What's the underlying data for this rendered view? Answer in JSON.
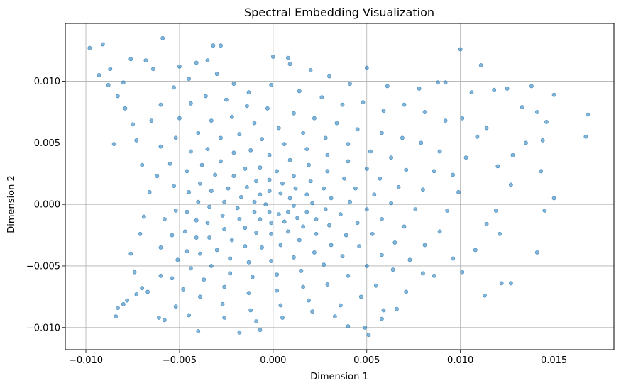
{
  "chart_data": {
    "type": "scatter",
    "title": "Spectral Embedding Visualization",
    "xlabel": "Dimension 1",
    "ylabel": "Dimension 2",
    "xlim": [
      -0.0111,
      0.0182
    ],
    "ylim": [
      -0.0118,
      0.0147
    ],
    "xticks": [
      -0.01,
      -0.005,
      0.0,
      0.005,
      0.01,
      0.015
    ],
    "xtick_labels": [
      "−0.010",
      "−0.005",
      "0.000",
      "0.005",
      "0.010",
      "0.015"
    ],
    "yticks": [
      -0.01,
      -0.005,
      0.0,
      0.005,
      0.01
    ],
    "ytick_labels": [
      "−0.010",
      "−0.005",
      "0.000",
      "0.005",
      "0.010"
    ],
    "grid": true,
    "marker_color": "#1f77b4",
    "marker_alpha": 0.55,
    "series": [
      {
        "points": [
          [
            -0.0098,
            0.0127
          ],
          [
            -0.0091,
            0.013
          ],
          [
            -0.0059,
            0.0135
          ],
          [
            -0.0032,
            0.0129
          ],
          [
            -0.0028,
            0.0129
          ],
          [
            0.0,
            0.012
          ],
          [
            0.0008,
            0.0119
          ],
          [
            0.005,
            0.0111
          ],
          [
            0.01,
            0.0126
          ],
          [
            0.0111,
            0.0113
          ],
          [
            0.0138,
            0.0096
          ],
          [
            0.015,
            0.0089
          ],
          [
            0.0168,
            0.0073
          ],
          [
            0.0167,
            0.0055
          ],
          [
            0.0146,
            0.0067
          ],
          [
            0.0143,
            0.0027
          ],
          [
            0.015,
            0.0005
          ],
          [
            0.0145,
            -0.0005
          ],
          [
            0.0141,
            -0.0039
          ],
          [
            0.0127,
            -0.0064
          ],
          [
            0.0122,
            -0.0064
          ],
          [
            0.0113,
            -0.0074
          ],
          [
            0.0101,
            -0.0055
          ],
          [
            0.008,
            -0.0056
          ],
          [
            0.0059,
            -0.0086
          ],
          [
            0.0051,
            -0.0106
          ],
          [
            0.0049,
            -0.01
          ],
          [
            0.004,
            -0.0099
          ],
          [
            -0.0007,
            -0.0102
          ],
          [
            -0.0018,
            -0.0104
          ],
          [
            -0.004,
            -0.0103
          ],
          [
            -0.0058,
            -0.0094
          ],
          [
            -0.0061,
            -0.0092
          ],
          [
            -0.0084,
            -0.0091
          ],
          [
            -0.0083,
            -0.0084
          ],
          [
            -0.008,
            -0.0081
          ],
          [
            -0.0078,
            -0.0078
          ],
          [
            -0.0073,
            -0.0073
          ],
          [
            -0.007,
            -0.0068
          ],
          [
            -0.0074,
            -0.0055
          ],
          [
            -0.0076,
            -0.004
          ],
          [
            -0.0071,
            -0.0024
          ],
          [
            -0.0069,
            -0.001
          ],
          [
            -0.0066,
            0.001
          ],
          [
            -0.007,
            0.0032
          ],
          [
            -0.0073,
            0.0052
          ],
          [
            -0.0075,
            0.0065
          ],
          [
            -0.0079,
            0.0078
          ],
          [
            -0.0083,
            0.0088
          ],
          [
            -0.0085,
            0.0049
          ],
          [
            -0.0088,
            0.0097
          ],
          [
            -0.0093,
            0.0105
          ],
          [
            -0.0087,
            0.011
          ],
          [
            -0.008,
            0.0099
          ],
          [
            -0.0076,
            0.0118
          ],
          [
            -0.0068,
            0.0117
          ],
          [
            -0.0064,
            0.011
          ],
          [
            -0.005,
            0.0112
          ],
          [
            -0.0041,
            0.0115
          ],
          [
            -0.0035,
            0.0117
          ],
          [
            0.0009,
            0.0114
          ],
          [
            0.002,
            0.0109
          ],
          [
            0.003,
            0.0104
          ],
          [
            0.0041,
            0.0098
          ],
          [
            0.0061,
            0.0096
          ],
          [
            0.0078,
            0.0094
          ],
          [
            0.0088,
            0.0099
          ],
          [
            0.0092,
            0.0099
          ],
          [
            0.0106,
            0.0091
          ],
          [
            0.0118,
            0.0093
          ],
          [
            0.0125,
            0.0094
          ],
          [
            0.0133,
            0.0079
          ],
          [
            0.0141,
            0.0075
          ],
          [
            0.0144,
            0.0052
          ],
          [
            0.0135,
            0.005
          ],
          [
            0.0128,
            0.004
          ],
          [
            0.012,
            0.0031
          ],
          [
            0.0127,
            0.0016
          ],
          [
            0.0119,
            -0.0005
          ],
          [
            0.0114,
            -0.0016
          ],
          [
            0.0121,
            -0.0024
          ],
          [
            0.0108,
            -0.0037
          ],
          [
            0.0096,
            -0.0044
          ],
          [
            0.0086,
            -0.0058
          ],
          [
            0.0071,
            -0.0071
          ],
          [
            0.0066,
            -0.0085
          ],
          [
            0.0058,
            -0.0093
          ],
          [
            0.0033,
            -0.0091
          ],
          [
            0.0021,
            -0.0087
          ],
          [
            0.0005,
            -0.0092
          ],
          [
            -0.0009,
            -0.0095
          ],
          [
            -0.0026,
            -0.0092
          ],
          [
            -0.0045,
            -0.009
          ],
          [
            -0.0052,
            -0.0083
          ],
          [
            -0.0067,
            -0.0071
          ],
          [
            -0.006,
            -0.0058
          ],
          [
            -0.006,
            -0.0035
          ],
          [
            -0.0058,
            -0.0012
          ],
          [
            -0.0062,
            0.0023
          ],
          [
            -0.006,
            0.0047
          ],
          [
            -0.0065,
            0.0068
          ],
          [
            -0.006,
            0.0081
          ],
          [
            -0.0053,
            0.0095
          ],
          [
            -0.0045,
            0.0102
          ],
          [
            -0.003,
            0.0106
          ],
          [
            -0.0021,
            0.0098
          ],
          [
            -0.0013,
            0.0091
          ],
          [
            -0.0001,
            0.0097
          ],
          [
            0.0014,
            0.0092
          ],
          [
            0.0026,
            0.0087
          ],
          [
            0.0037,
            0.0081
          ],
          [
            0.0048,
            0.0083
          ],
          [
            0.0059,
            0.0076
          ],
          [
            0.007,
            0.0081
          ],
          [
            0.0081,
            0.0075
          ],
          [
            0.0092,
            0.0068
          ],
          [
            0.0101,
            0.007
          ],
          [
            0.0109,
            0.0055
          ],
          [
            0.0114,
            0.0062
          ],
          [
            0.0103,
            0.0038
          ],
          [
            0.0096,
            0.0024
          ],
          [
            0.0099,
            0.001
          ],
          [
            0.0093,
            -0.0005
          ],
          [
            0.0089,
            -0.0022
          ],
          [
            0.0081,
            -0.0033
          ],
          [
            0.0073,
            -0.0045
          ],
          [
            0.0064,
            -0.0053
          ],
          [
            0.0055,
            -0.0066
          ],
          [
            0.0047,
            -0.0075
          ],
          [
            0.0036,
            -0.0082
          ],
          [
            0.0019,
            -0.0078
          ],
          [
            0.0004,
            -0.0082
          ],
          [
            -0.0012,
            -0.0086
          ],
          [
            -0.0027,
            -0.0081
          ],
          [
            -0.0039,
            -0.0075
          ],
          [
            -0.0048,
            -0.0069
          ],
          [
            -0.0054,
            -0.006
          ],
          [
            -0.0051,
            -0.0045
          ],
          [
            -0.0054,
            -0.0025
          ],
          [
            -0.0052,
            -0.0005
          ],
          [
            -0.0053,
            0.0015
          ],
          [
            -0.0055,
            0.0033
          ],
          [
            -0.0052,
            0.0054
          ],
          [
            -0.005,
            0.007
          ],
          [
            -0.0044,
            0.0082
          ],
          [
            -0.0036,
            0.0088
          ],
          [
            -0.0025,
            0.0085
          ],
          [
            -0.0014,
            0.008
          ],
          [
            -0.0003,
            0.0078
          ],
          [
            0.0011,
            0.0074
          ],
          [
            0.0022,
            0.007
          ],
          [
            0.0034,
            0.0066
          ],
          [
            0.0045,
            0.0061
          ],
          [
            0.0058,
            0.0058
          ],
          [
            0.0069,
            0.0054
          ],
          [
            0.0079,
            0.005
          ],
          [
            0.0089,
            0.0043
          ],
          [
            0.0086,
            0.0027
          ],
          [
            0.008,
            0.0012
          ],
          [
            0.0076,
            -0.0004
          ],
          [
            0.007,
            -0.0018
          ],
          [
            0.0065,
            -0.0031
          ],
          [
            0.0058,
            -0.0041
          ],
          [
            0.005,
            -0.005
          ],
          [
            0.004,
            -0.0058
          ],
          [
            0.0029,
            -0.0065
          ],
          [
            0.0016,
            -0.0067
          ],
          [
            0.0002,
            -0.007
          ],
          [
            -0.0013,
            -0.0072
          ],
          [
            -0.0026,
            -0.0067
          ],
          [
            -0.0037,
            -0.0061
          ],
          [
            -0.0044,
            -0.0052
          ],
          [
            -0.0046,
            -0.0038
          ],
          [
            -0.0047,
            -0.0022
          ],
          [
            -0.0046,
            -0.0006
          ],
          [
            -0.0045,
            0.001
          ],
          [
            -0.0046,
            0.0027
          ],
          [
            -0.0044,
            0.0043
          ],
          [
            -0.004,
            0.0058
          ],
          [
            -0.0033,
            0.0068
          ],
          [
            -0.0022,
            0.0071
          ],
          [
            -0.001,
            0.0066
          ],
          [
            0.0003,
            0.0062
          ],
          [
            0.0016,
            0.0058
          ],
          [
            0.0028,
            0.0054
          ],
          [
            0.004,
            0.0049
          ],
          [
            0.0052,
            0.0043
          ],
          [
            0.0063,
            0.0038
          ],
          [
            0.0071,
            0.0028
          ],
          [
            0.0067,
            0.0014
          ],
          [
            0.0063,
            0.0001
          ],
          [
            0.0058,
            -0.0012
          ],
          [
            0.0053,
            -0.0024
          ],
          [
            0.0046,
            -0.0034
          ],
          [
            0.0037,
            -0.0042
          ],
          [
            0.0027,
            -0.0049
          ],
          [
            0.0015,
            -0.0054
          ],
          [
            0.0002,
            -0.0057
          ],
          [
            -0.0011,
            -0.0059
          ],
          [
            -0.0023,
            -0.0056
          ],
          [
            -0.0033,
            -0.005
          ],
          [
            -0.0039,
            -0.004
          ],
          [
            -0.0041,
            -0.0027
          ],
          [
            -0.0041,
            -0.0013
          ],
          [
            -0.004,
            0.0002
          ],
          [
            -0.0039,
            0.0017
          ],
          [
            -0.0038,
            0.0032
          ],
          [
            -0.0035,
            0.0045
          ],
          [
            -0.0028,
            0.0054
          ],
          [
            -0.0018,
            0.0057
          ],
          [
            -0.0006,
            0.0053
          ],
          [
            0.0006,
            0.0049
          ],
          [
            0.0018,
            0.0045
          ],
          [
            0.0029,
            0.004
          ],
          [
            0.004,
            0.0035
          ],
          [
            0.005,
            0.0029
          ],
          [
            0.0057,
            0.0021
          ],
          [
            0.0054,
            0.0008
          ],
          [
            0.005,
            -0.0004
          ],
          [
            0.0045,
            -0.0015
          ],
          [
            0.0039,
            -0.0025
          ],
          [
            0.0031,
            -0.0033
          ],
          [
            0.0022,
            -0.0039
          ],
          [
            0.0011,
            -0.0043
          ],
          [
            -0.0001,
            -0.0046
          ],
          [
            -0.0013,
            -0.0047
          ],
          [
            -0.0023,
            -0.0044
          ],
          [
            -0.003,
            -0.0037
          ],
          [
            -0.0034,
            -0.0027
          ],
          [
            -0.0035,
            -0.0015
          ],
          [
            -0.0034,
            -0.0002
          ],
          [
            -0.0033,
            0.0011
          ],
          [
            -0.0031,
            0.0024
          ],
          [
            -0.0028,
            0.0035
          ],
          [
            -0.0021,
            0.0042
          ],
          [
            -0.0012,
            0.0044
          ],
          [
            -0.0002,
            0.004
          ],
          [
            0.0009,
            0.0036
          ],
          [
            0.0019,
            0.0032
          ],
          [
            0.0029,
            0.0027
          ],
          [
            0.0038,
            0.0021
          ],
          [
            0.0044,
            0.0013
          ],
          [
            0.0041,
            0.0002
          ],
          [
            0.0036,
            -0.0008
          ],
          [
            0.003,
            -0.0017
          ],
          [
            0.0023,
            -0.0024
          ],
          [
            0.0014,
            -0.0029
          ],
          [
            0.0004,
            -0.0033
          ],
          [
            -0.0006,
            -0.0035
          ],
          [
            -0.0015,
            -0.0034
          ],
          [
            -0.0022,
            -0.0029
          ],
          [
            -0.0026,
            -0.002
          ],
          [
            -0.0027,
            -0.0009
          ],
          [
            -0.0026,
            0.0002
          ],
          [
            -0.0024,
            0.0013
          ],
          [
            -0.0021,
            0.0023
          ],
          [
            -0.0015,
            0.0029
          ],
          [
            -0.0007,
            0.003
          ],
          [
            0.0002,
            0.0027
          ],
          [
            0.0011,
            0.0023
          ],
          [
            0.002,
            0.0019
          ],
          [
            0.0027,
            0.0013
          ],
          [
            0.0031,
            0.0005
          ],
          [
            0.0028,
            -0.0004
          ],
          [
            0.0023,
            -0.0012
          ],
          [
            0.0016,
            -0.0018
          ],
          [
            0.0008,
            -0.0022
          ],
          [
            -0.0001,
            -0.0024
          ],
          [
            -0.0009,
            -0.0023
          ],
          [
            -0.0015,
            -0.0019
          ],
          [
            -0.0018,
            -0.0012
          ],
          [
            -0.0019,
            -0.0003
          ],
          [
            -0.0017,
            0.0006
          ],
          [
            -0.0014,
            0.0014
          ],
          [
            -0.0009,
            0.0019
          ],
          [
            -0.0002,
            0.002
          ],
          [
            0.0005,
            0.0017
          ],
          [
            0.0012,
            0.0013
          ],
          [
            0.0018,
            0.0008
          ],
          [
            0.0021,
            0.0001
          ],
          [
            0.0018,
            -0.0006
          ],
          [
            0.0013,
            -0.0011
          ],
          [
            0.0006,
            -0.0014
          ],
          [
            -0.0001,
            -0.0015
          ],
          [
            -0.0007,
            -0.0012
          ],
          [
            -0.001,
            -0.0006
          ],
          [
            -0.001,
            0.0002
          ],
          [
            -0.0007,
            0.0008
          ],
          [
            -0.0002,
            0.0011
          ],
          [
            0.0004,
            0.0009
          ],
          [
            0.0009,
            0.0005
          ],
          [
            0.0011,
            -0.0001
          ],
          [
            0.0008,
            -0.0006
          ],
          [
            0.0003,
            -0.0008
          ],
          [
            -0.0002,
            -0.0006
          ],
          [
            -0.0004,
            0.0
          ]
        ]
      }
    ]
  }
}
